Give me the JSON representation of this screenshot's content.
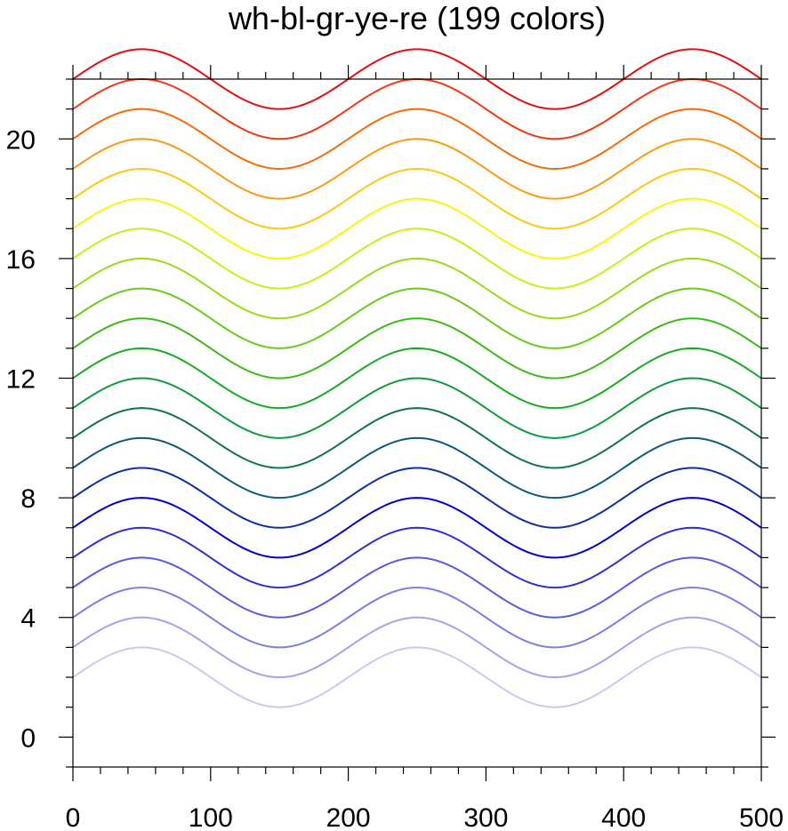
{
  "chart_data": {
    "type": "line",
    "title": "wh-bl-gr-ye-re (199 colors)",
    "xlabel": "",
    "ylabel": "",
    "xlim": [
      0,
      500
    ],
    "ylim": [
      -1,
      22
    ],
    "x_ticks": [
      "0",
      "100",
      "200",
      "300",
      "400",
      "500"
    ],
    "y_ticks": [
      "0",
      "4",
      "8",
      "12",
      "16",
      "20"
    ],
    "grid": false,
    "curve": {
      "formula": "offset + sin(2*pi*x/200)",
      "x_start": 0,
      "x_end": 500,
      "amplitude": 1,
      "period": 200
    },
    "series": [
      {
        "offset": 2,
        "color": "#c9c9f2"
      },
      {
        "offset": 3,
        "color": "#a3a3ee"
      },
      {
        "offset": 4,
        "color": "#7d7de6"
      },
      {
        "offset": 5,
        "color": "#5a5ae0"
      },
      {
        "offset": 6,
        "color": "#2f2fd6"
      },
      {
        "offset": 7,
        "color": "#0000d0"
      },
      {
        "offset": 8,
        "color": "#1030a0"
      },
      {
        "offset": 9,
        "color": "#0e5a78"
      },
      {
        "offset": 10,
        "color": "#0b7455"
      },
      {
        "offset": 11,
        "color": "#0f9a3c"
      },
      {
        "offset": 12,
        "color": "#1aaa22"
      },
      {
        "offset": 13,
        "color": "#3cbb18"
      },
      {
        "offset": 14,
        "color": "#66cc18"
      },
      {
        "offset": 15,
        "color": "#94dd18"
      },
      {
        "offset": 16,
        "color": "#c8ee16"
      },
      {
        "offset": 17,
        "color": "#f6f60a"
      },
      {
        "offset": 18,
        "color": "#fbc814"
      },
      {
        "offset": 19,
        "color": "#fb9a10"
      },
      {
        "offset": 20,
        "color": "#f86a08"
      },
      {
        "offset": 21,
        "color": "#f33810"
      },
      {
        "offset": 22,
        "color": "#e80c0c"
      }
    ]
  }
}
